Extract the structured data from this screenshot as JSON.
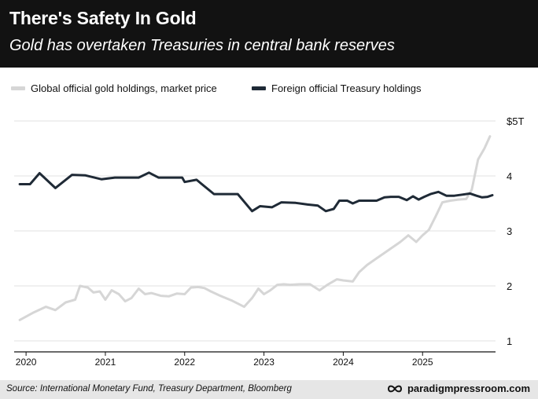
{
  "header": {
    "title": "There's Safety In Gold",
    "subtitle": "Gold has overtaken Treasuries in central bank reserves"
  },
  "footer": {
    "source": "Source: International Monetary Fund, Treasury Department, Bloomberg",
    "brand": "paradigmpressroom.com",
    "brand_icon": "infinity-icon"
  },
  "colors": {
    "gold_series": "#d6d6d6",
    "treasury_series": "#1f2a36",
    "header_bg": "#121212",
    "footer_bg": "#e6e6e6",
    "grid": "#e2e2e2"
  },
  "chart_data": {
    "type": "line",
    "title": "There's Safety In Gold",
    "subtitle": "Gold has overtaken Treasuries in central bank reserves",
    "xlabel": "",
    "ylabel": "",
    "xlim": [
      2019.85,
      2025.92
    ],
    "ylim": [
      0.8,
      5.2
    ],
    "x_ticks": [
      2020,
      2021,
      2022,
      2023,
      2024,
      2025
    ],
    "x_tick_labels": [
      "2020",
      "2021",
      "2022",
      "2023",
      "2024",
      "2025"
    ],
    "y_ticks": [
      1,
      2,
      3,
      4,
      5
    ],
    "y_tick_labels": [
      "1",
      "2",
      "3",
      "4",
      "$5T"
    ],
    "grid": true,
    "legend": "top-left",
    "series": [
      {
        "name": "Global official gold holdings, market price",
        "color": "#d6d6d6",
        "x": [
          2019.92,
          2020.1,
          2020.25,
          2020.37,
          2020.5,
          2020.62,
          2020.68,
          2020.78,
          2020.85,
          2020.93,
          2021.0,
          2021.08,
          2021.17,
          2021.25,
          2021.33,
          2021.42,
          2021.5,
          2021.58,
          2021.7,
          2021.8,
          2021.9,
          2022.0,
          2022.08,
          2022.17,
          2022.25,
          2022.33,
          2022.45,
          2022.6,
          2022.75,
          2022.85,
          2022.93,
          2023.0,
          2023.08,
          2023.17,
          2023.25,
          2023.33,
          2023.45,
          2023.58,
          2023.7,
          2023.8,
          2023.92,
          2024.0,
          2024.12,
          2024.2,
          2024.3,
          2024.4,
          2024.5,
          2024.6,
          2024.72,
          2024.82,
          2024.92,
          2025.0,
          2025.08,
          2025.17,
          2025.25,
          2025.35,
          2025.45,
          2025.55,
          2025.62,
          2025.7,
          2025.78,
          2025.85
        ],
        "values": [
          1.38,
          1.52,
          1.62,
          1.56,
          1.7,
          1.75,
          2.0,
          1.97,
          1.88,
          1.9,
          1.75,
          1.92,
          1.85,
          1.72,
          1.78,
          1.95,
          1.85,
          1.87,
          1.82,
          1.81,
          1.86,
          1.85,
          1.97,
          1.98,
          1.96,
          1.9,
          1.82,
          1.73,
          1.62,
          1.78,
          1.95,
          1.85,
          1.92,
          2.02,
          2.03,
          2.02,
          2.03,
          2.03,
          1.92,
          2.02,
          2.12,
          2.1,
          2.08,
          2.25,
          2.38,
          2.48,
          2.58,
          2.68,
          2.8,
          2.92,
          2.8,
          2.92,
          3.02,
          3.28,
          3.52,
          3.55,
          3.57,
          3.58,
          3.75,
          4.3,
          4.5,
          4.72
        ]
      },
      {
        "name": "Foreign official Treasury holdings",
        "color": "#1f2a36",
        "x": [
          2019.92,
          2020.05,
          2020.17,
          2020.37,
          2020.58,
          2020.75,
          2020.95,
          2021.12,
          2021.25,
          2021.42,
          2021.55,
          2021.67,
          2021.8,
          2021.97,
          2022.0,
          2022.15,
          2022.37,
          2022.67,
          2022.85,
          2022.95,
          2023.1,
          2023.22,
          2023.4,
          2023.55,
          2023.68,
          2023.78,
          2023.88,
          2023.95,
          2024.05,
          2024.12,
          2024.2,
          2024.3,
          2024.42,
          2024.52,
          2024.6,
          2024.7,
          2024.8,
          2024.88,
          2024.95,
          2025.02,
          2025.1,
          2025.2,
          2025.3,
          2025.4,
          2025.5,
          2025.6,
          2025.68,
          2025.75,
          2025.82,
          2025.88
        ],
        "values": [
          3.85,
          3.85,
          4.05,
          3.78,
          4.02,
          4.01,
          3.94,
          3.97,
          3.97,
          3.97,
          4.06,
          3.97,
          3.97,
          3.97,
          3.89,
          3.93,
          3.67,
          3.67,
          3.36,
          3.45,
          3.43,
          3.52,
          3.51,
          3.48,
          3.46,
          3.36,
          3.4,
          3.55,
          3.55,
          3.5,
          3.55,
          3.55,
          3.55,
          3.61,
          3.62,
          3.62,
          3.56,
          3.63,
          3.57,
          3.62,
          3.67,
          3.71,
          3.64,
          3.64,
          3.66,
          3.68,
          3.64,
          3.61,
          3.62,
          3.65
        ]
      }
    ]
  }
}
